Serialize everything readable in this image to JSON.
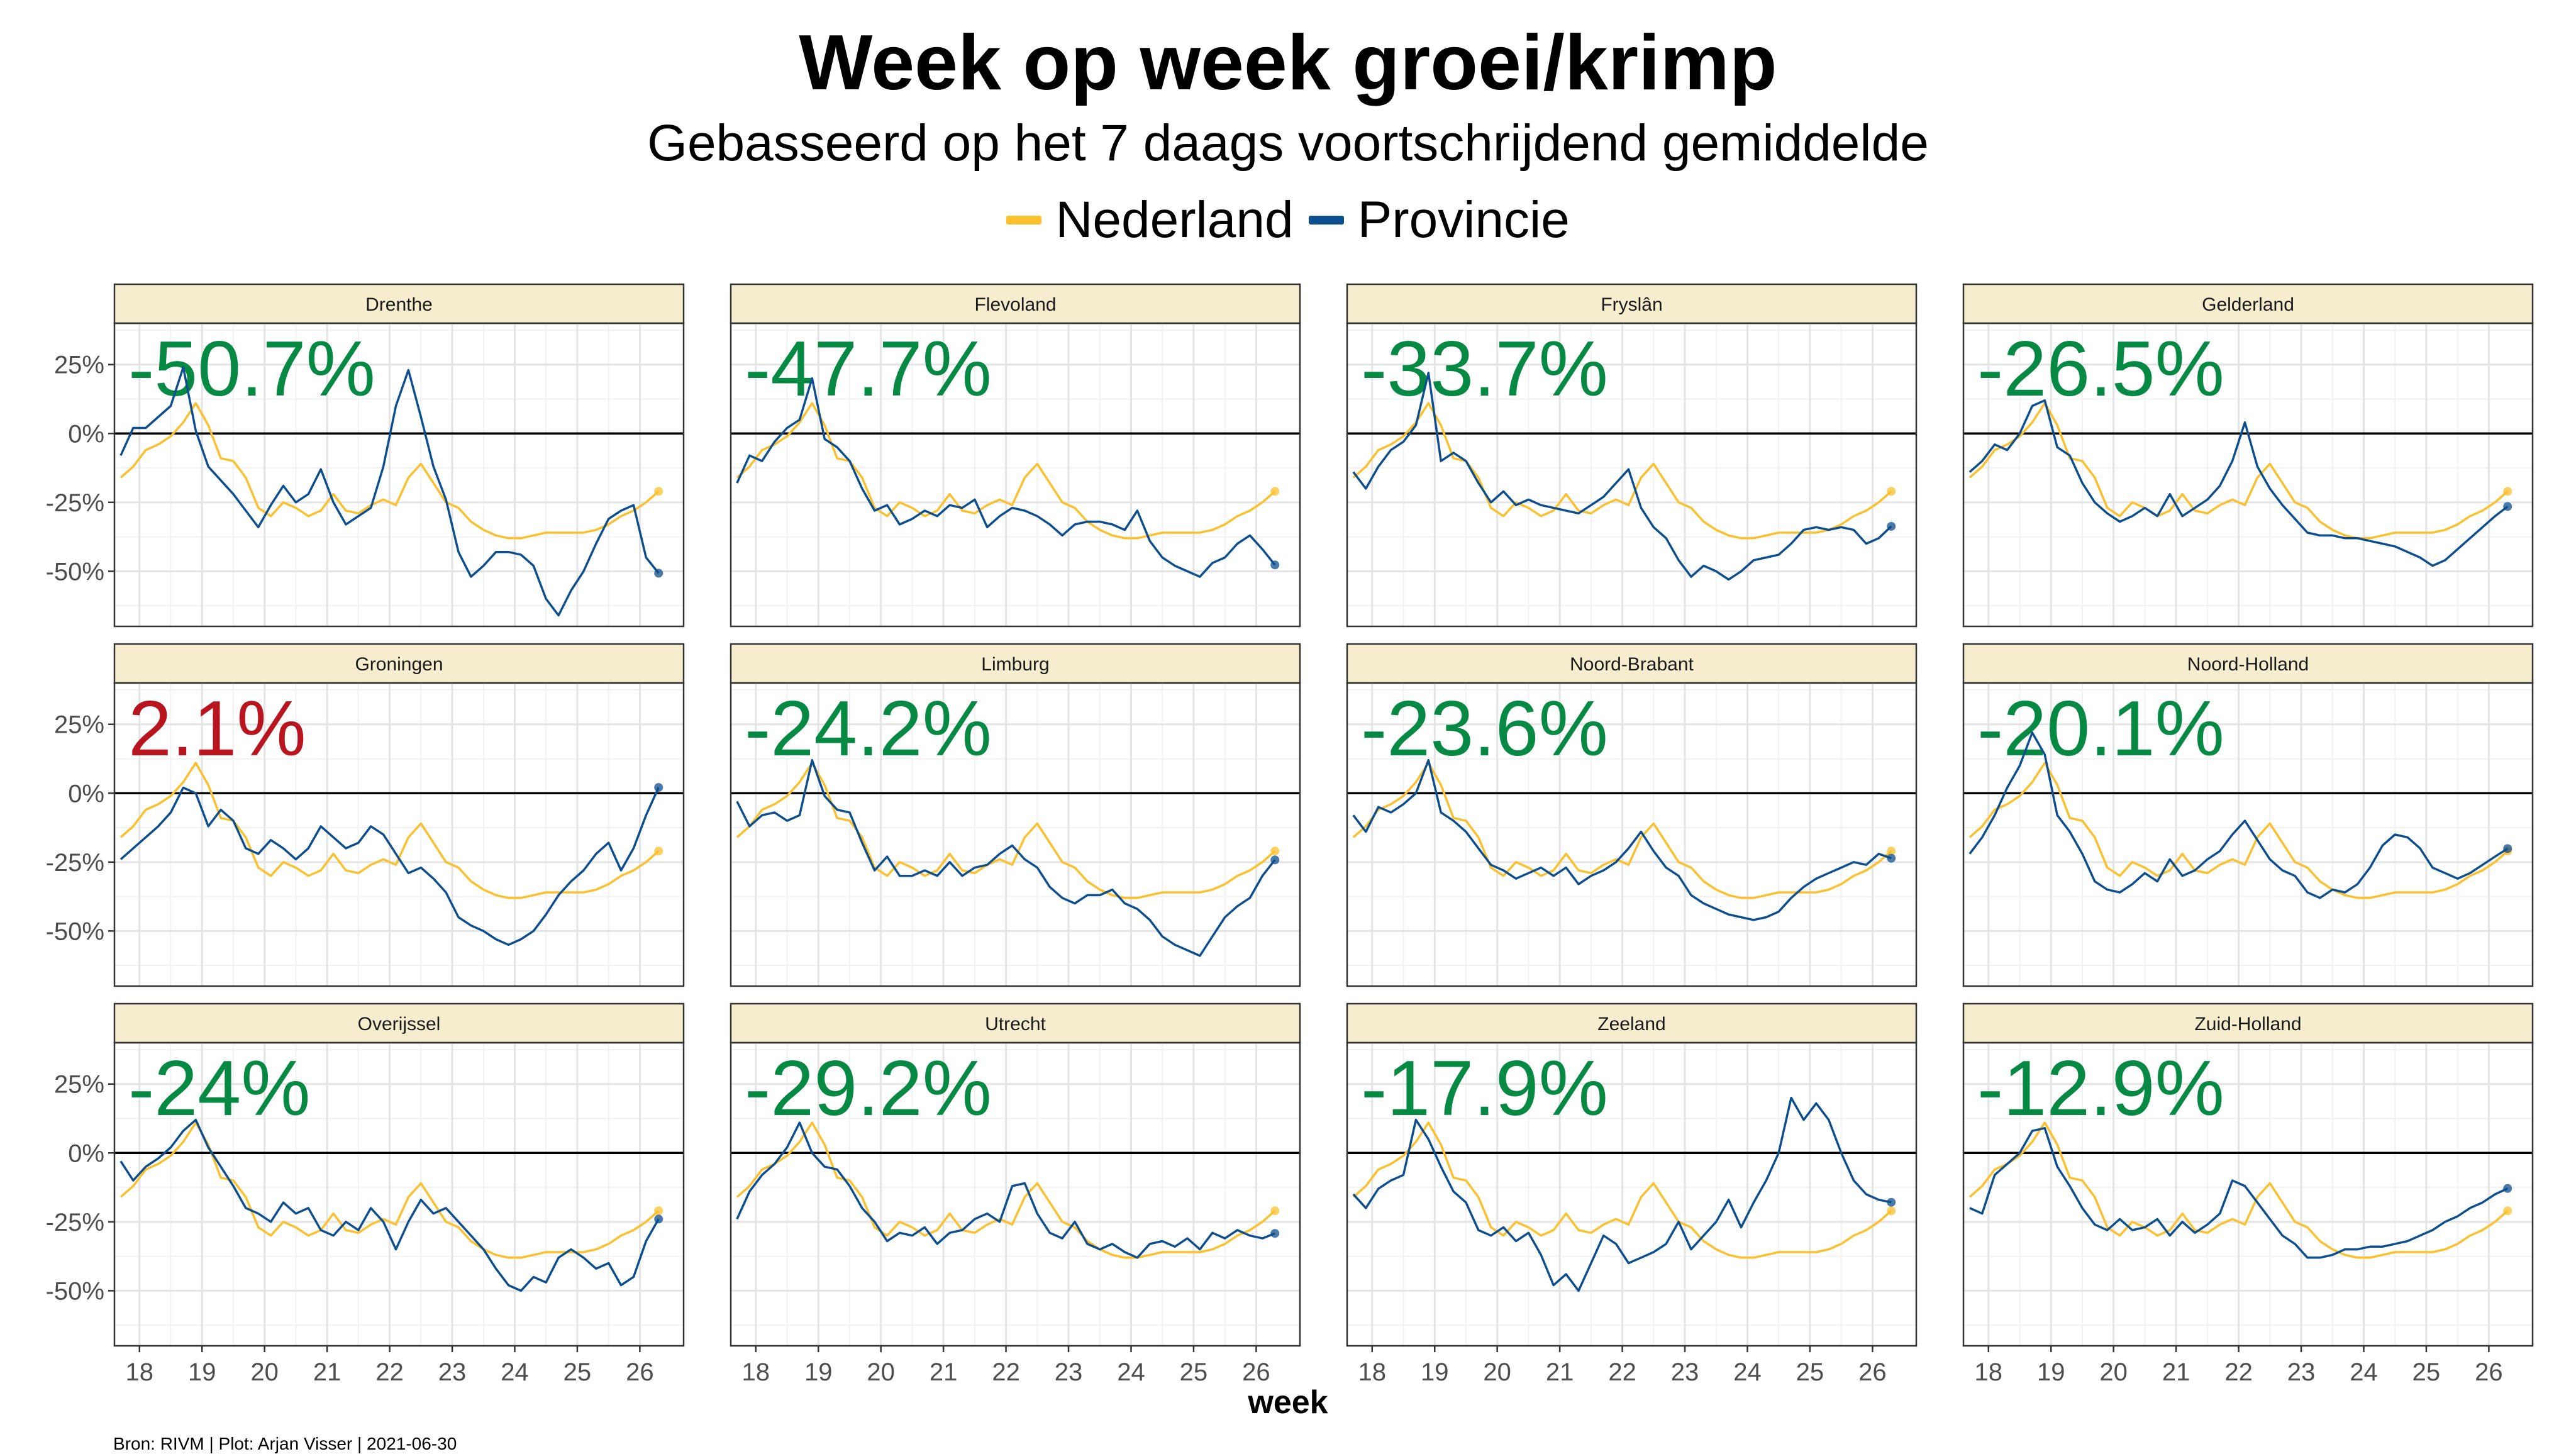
{
  "title": "Week op week groei/krimp",
  "subtitle": "Gebasseerd op het 7 daags voortschrijdend gemiddelde",
  "legend": [
    {
      "label": "Nederland",
      "color": "#FBC02D"
    },
    {
      "label": "Provincie",
      "color": "#0D4E8E"
    }
  ],
  "xlabel": "week",
  "caption": "Bron: RIVM | Plot: Arjan Visser | 2021-06-30",
  "colors": {
    "positive": "#B8151F",
    "negative": "#068A43",
    "strip_fill": "#F6EDCF",
    "panel_border": "#333333",
    "grid_major": "#E4E4E4",
    "grid_minor": "#F2F2F2",
    "zero_line": "#000000"
  },
  "chart_data": {
    "type": "line",
    "facet_layout": "4 columns x 3 rows",
    "xlabel": "week",
    "xlim": [
      17.6,
      26.7
    ],
    "ylim": [
      -0.7,
      0.4
    ],
    "x_ticks": [
      18,
      19,
      20,
      21,
      22,
      23,
      24,
      25,
      26
    ],
    "y_ticks": [
      {
        "value": 0.25,
        "label": "25%"
      },
      {
        "value": 0,
        "label": "0%"
      },
      {
        "value": -0.25,
        "label": "-25%"
      },
      {
        "value": -0.5,
        "label": "-50%"
      }
    ],
    "x": [
      17.7,
      17.9,
      18.1,
      18.3,
      18.5,
      18.7,
      18.9,
      19.1,
      19.3,
      19.5,
      19.7,
      19.9,
      20.1,
      20.3,
      20.5,
      20.7,
      20.9,
      21.1,
      21.3,
      21.5,
      21.7,
      21.9,
      22.1,
      22.3,
      22.5,
      22.7,
      22.9,
      23.1,
      23.3,
      23.5,
      23.7,
      23.9,
      24.1,
      24.3,
      24.5,
      24.7,
      24.9,
      25.1,
      25.3,
      25.5,
      25.7,
      25.9,
      26.1,
      26.3
    ],
    "nederland": [
      -0.16,
      -0.12,
      -0.06,
      -0.04,
      -0.01,
      0.04,
      0.11,
      0.03,
      -0.09,
      -0.1,
      -0.16,
      -0.27,
      -0.3,
      -0.25,
      -0.27,
      -0.3,
      -0.28,
      -0.22,
      -0.28,
      -0.29,
      -0.26,
      -0.24,
      -0.26,
      -0.16,
      -0.11,
      -0.18,
      -0.25,
      -0.27,
      -0.32,
      -0.35,
      -0.37,
      -0.38,
      -0.38,
      -0.37,
      -0.36,
      -0.36,
      -0.36,
      -0.36,
      -0.35,
      -0.33,
      -0.3,
      -0.28,
      -0.25,
      -0.21
    ],
    "panels": [
      {
        "name": "Drenthe",
        "label": "-50.7%",
        "value": -0.507,
        "provincie": [
          -0.08,
          0.02,
          0.02,
          0.06,
          0.1,
          0.24,
          0.01,
          -0.12,
          -0.17,
          -0.22,
          -0.28,
          -0.34,
          -0.26,
          -0.19,
          -0.25,
          -0.22,
          -0.13,
          -0.25,
          -0.33,
          -0.3,
          -0.27,
          -0.12,
          0.1,
          0.23,
          0.06,
          -0.12,
          -0.24,
          -0.43,
          -0.52,
          -0.48,
          -0.43,
          -0.43,
          -0.44,
          -0.48,
          -0.6,
          -0.66,
          -0.57,
          -0.5,
          -0.4,
          -0.31,
          -0.28,
          -0.26,
          -0.45,
          -0.507
        ]
      },
      {
        "name": "Flevoland",
        "label": "-47.7%",
        "value": -0.477,
        "provincie": [
          -0.18,
          -0.08,
          -0.1,
          -0.03,
          0.02,
          0.05,
          0.2,
          -0.02,
          -0.05,
          -0.1,
          -0.2,
          -0.28,
          -0.26,
          -0.33,
          -0.31,
          -0.28,
          -0.3,
          -0.26,
          -0.27,
          -0.24,
          -0.34,
          -0.3,
          -0.27,
          -0.28,
          -0.3,
          -0.33,
          -0.37,
          -0.33,
          -0.32,
          -0.32,
          -0.33,
          -0.35,
          -0.28,
          -0.39,
          -0.45,
          -0.48,
          -0.5,
          -0.52,
          -0.47,
          -0.45,
          -0.4,
          -0.37,
          -0.42,
          -0.477
        ]
      },
      {
        "name": "Fryslân",
        "label": "-33.7%",
        "value": -0.337,
        "provincie": [
          -0.14,
          -0.2,
          -0.12,
          -0.06,
          -0.03,
          0.03,
          0.22,
          -0.1,
          -0.07,
          -0.1,
          -0.18,
          -0.25,
          -0.21,
          -0.26,
          -0.24,
          -0.26,
          -0.27,
          -0.28,
          -0.29,
          -0.26,
          -0.23,
          -0.18,
          -0.13,
          -0.27,
          -0.34,
          -0.38,
          -0.46,
          -0.52,
          -0.48,
          -0.5,
          -0.53,
          -0.5,
          -0.46,
          -0.45,
          -0.44,
          -0.4,
          -0.35,
          -0.34,
          -0.35,
          -0.34,
          -0.35,
          -0.4,
          -0.38,
          -0.337
        ]
      },
      {
        "name": "Gelderland",
        "label": "-26.5%",
        "value": -0.265,
        "provincie": [
          -0.14,
          -0.1,
          -0.04,
          -0.06,
          0.0,
          0.1,
          0.12,
          -0.05,
          -0.08,
          -0.18,
          -0.25,
          -0.29,
          -0.32,
          -0.3,
          -0.27,
          -0.3,
          -0.22,
          -0.3,
          -0.27,
          -0.24,
          -0.19,
          -0.1,
          0.04,
          -0.12,
          -0.2,
          -0.26,
          -0.31,
          -0.36,
          -0.37,
          -0.37,
          -0.38,
          -0.38,
          -0.39,
          -0.4,
          -0.41,
          -0.43,
          -0.45,
          -0.48,
          -0.46,
          -0.42,
          -0.38,
          -0.34,
          -0.3,
          -0.265
        ]
      },
      {
        "name": "Groningen",
        "label": "2.1%",
        "value": 0.021,
        "provincie": [
          -0.24,
          -0.2,
          -0.16,
          -0.12,
          -0.07,
          0.02,
          0.0,
          -0.12,
          -0.06,
          -0.1,
          -0.2,
          -0.22,
          -0.17,
          -0.2,
          -0.24,
          -0.2,
          -0.12,
          -0.16,
          -0.2,
          -0.18,
          -0.12,
          -0.15,
          -0.22,
          -0.29,
          -0.27,
          -0.31,
          -0.36,
          -0.45,
          -0.48,
          -0.5,
          -0.53,
          -0.55,
          -0.53,
          -0.5,
          -0.44,
          -0.37,
          -0.32,
          -0.28,
          -0.22,
          -0.18,
          -0.28,
          -0.2,
          -0.08,
          0.021
        ]
      },
      {
        "name": "Limburg",
        "label": "-24.2%",
        "value": -0.242,
        "provincie": [
          -0.03,
          -0.12,
          -0.08,
          -0.07,
          -0.1,
          -0.08,
          0.12,
          -0.01,
          -0.06,
          -0.07,
          -0.18,
          -0.28,
          -0.23,
          -0.3,
          -0.3,
          -0.28,
          -0.3,
          -0.25,
          -0.3,
          -0.27,
          -0.26,
          -0.22,
          -0.19,
          -0.24,
          -0.27,
          -0.34,
          -0.38,
          -0.4,
          -0.37,
          -0.37,
          -0.35,
          -0.4,
          -0.42,
          -0.46,
          -0.52,
          -0.55,
          -0.57,
          -0.59,
          -0.52,
          -0.45,
          -0.41,
          -0.38,
          -0.3,
          -0.242
        ]
      },
      {
        "name": "Noord-Brabant",
        "label": "-23.6%",
        "value": -0.236,
        "provincie": [
          -0.08,
          -0.14,
          -0.05,
          -0.07,
          -0.04,
          0.0,
          0.12,
          -0.07,
          -0.1,
          -0.14,
          -0.2,
          -0.26,
          -0.28,
          -0.31,
          -0.29,
          -0.27,
          -0.3,
          -0.27,
          -0.33,
          -0.3,
          -0.28,
          -0.25,
          -0.2,
          -0.14,
          -0.21,
          -0.27,
          -0.3,
          -0.37,
          -0.4,
          -0.42,
          -0.44,
          -0.45,
          -0.46,
          -0.45,
          -0.43,
          -0.38,
          -0.34,
          -0.31,
          -0.29,
          -0.27,
          -0.25,
          -0.26,
          -0.22,
          -0.236
        ]
      },
      {
        "name": "Noord-Holland",
        "label": "-20.1%",
        "value": -0.201,
        "provincie": [
          -0.22,
          -0.16,
          -0.08,
          0.02,
          0.1,
          0.22,
          0.14,
          -0.08,
          -0.14,
          -0.22,
          -0.32,
          -0.35,
          -0.36,
          -0.33,
          -0.29,
          -0.32,
          -0.24,
          -0.3,
          -0.28,
          -0.24,
          -0.21,
          -0.15,
          -0.1,
          -0.17,
          -0.24,
          -0.28,
          -0.3,
          -0.36,
          -0.38,
          -0.35,
          -0.36,
          -0.33,
          -0.27,
          -0.19,
          -0.15,
          -0.16,
          -0.2,
          -0.27,
          -0.29,
          -0.31,
          -0.29,
          -0.26,
          -0.23,
          -0.201
        ]
      },
      {
        "name": "Overijssel",
        "label": "-24%",
        "value": -0.24,
        "provincie": [
          -0.03,
          -0.1,
          -0.05,
          -0.02,
          0.02,
          0.08,
          0.12,
          0.02,
          -0.05,
          -0.12,
          -0.2,
          -0.22,
          -0.25,
          -0.18,
          -0.22,
          -0.2,
          -0.28,
          -0.3,
          -0.25,
          -0.28,
          -0.2,
          -0.25,
          -0.35,
          -0.25,
          -0.17,
          -0.22,
          -0.2,
          -0.25,
          -0.3,
          -0.35,
          -0.42,
          -0.48,
          -0.5,
          -0.45,
          -0.47,
          -0.38,
          -0.35,
          -0.38,
          -0.42,
          -0.4,
          -0.48,
          -0.45,
          -0.32,
          -0.24
        ]
      },
      {
        "name": "Utrecht",
        "label": "-29.2%",
        "value": -0.292,
        "provincie": [
          -0.24,
          -0.14,
          -0.08,
          -0.04,
          0.02,
          0.11,
          0.0,
          -0.05,
          -0.06,
          -0.12,
          -0.2,
          -0.25,
          -0.32,
          -0.29,
          -0.3,
          -0.27,
          -0.33,
          -0.29,
          -0.28,
          -0.24,
          -0.22,
          -0.25,
          -0.12,
          -0.11,
          -0.22,
          -0.29,
          -0.31,
          -0.25,
          -0.33,
          -0.35,
          -0.33,
          -0.36,
          -0.38,
          -0.33,
          -0.32,
          -0.34,
          -0.31,
          -0.35,
          -0.29,
          -0.31,
          -0.28,
          -0.3,
          -0.31,
          -0.292
        ]
      },
      {
        "name": "Zeeland",
        "label": "-17.9%",
        "value": -0.179,
        "provincie": [
          -0.15,
          -0.2,
          -0.13,
          -0.1,
          -0.08,
          0.12,
          0.05,
          -0.05,
          -0.14,
          -0.18,
          -0.28,
          -0.3,
          -0.27,
          -0.32,
          -0.29,
          -0.37,
          -0.48,
          -0.44,
          -0.5,
          -0.4,
          -0.3,
          -0.33,
          -0.4,
          -0.38,
          -0.36,
          -0.33,
          -0.25,
          -0.35,
          -0.3,
          -0.25,
          -0.17,
          -0.27,
          -0.18,
          -0.1,
          0.0,
          0.2,
          0.12,
          0.18,
          0.12,
          0.0,
          -0.1,
          -0.15,
          -0.17,
          -0.179
        ]
      },
      {
        "name": "Zuid-Holland",
        "label": "-12.9%",
        "value": -0.129,
        "provincie": [
          -0.2,
          -0.22,
          -0.08,
          -0.04,
          0.0,
          0.08,
          0.09,
          -0.05,
          -0.12,
          -0.2,
          -0.26,
          -0.28,
          -0.24,
          -0.28,
          -0.27,
          -0.24,
          -0.3,
          -0.25,
          -0.29,
          -0.26,
          -0.22,
          -0.1,
          -0.12,
          -0.18,
          -0.24,
          -0.3,
          -0.33,
          -0.38,
          -0.38,
          -0.37,
          -0.35,
          -0.35,
          -0.34,
          -0.34,
          -0.33,
          -0.32,
          -0.3,
          -0.28,
          -0.25,
          -0.23,
          -0.2,
          -0.18,
          -0.15,
          -0.129
        ]
      }
    ]
  }
}
